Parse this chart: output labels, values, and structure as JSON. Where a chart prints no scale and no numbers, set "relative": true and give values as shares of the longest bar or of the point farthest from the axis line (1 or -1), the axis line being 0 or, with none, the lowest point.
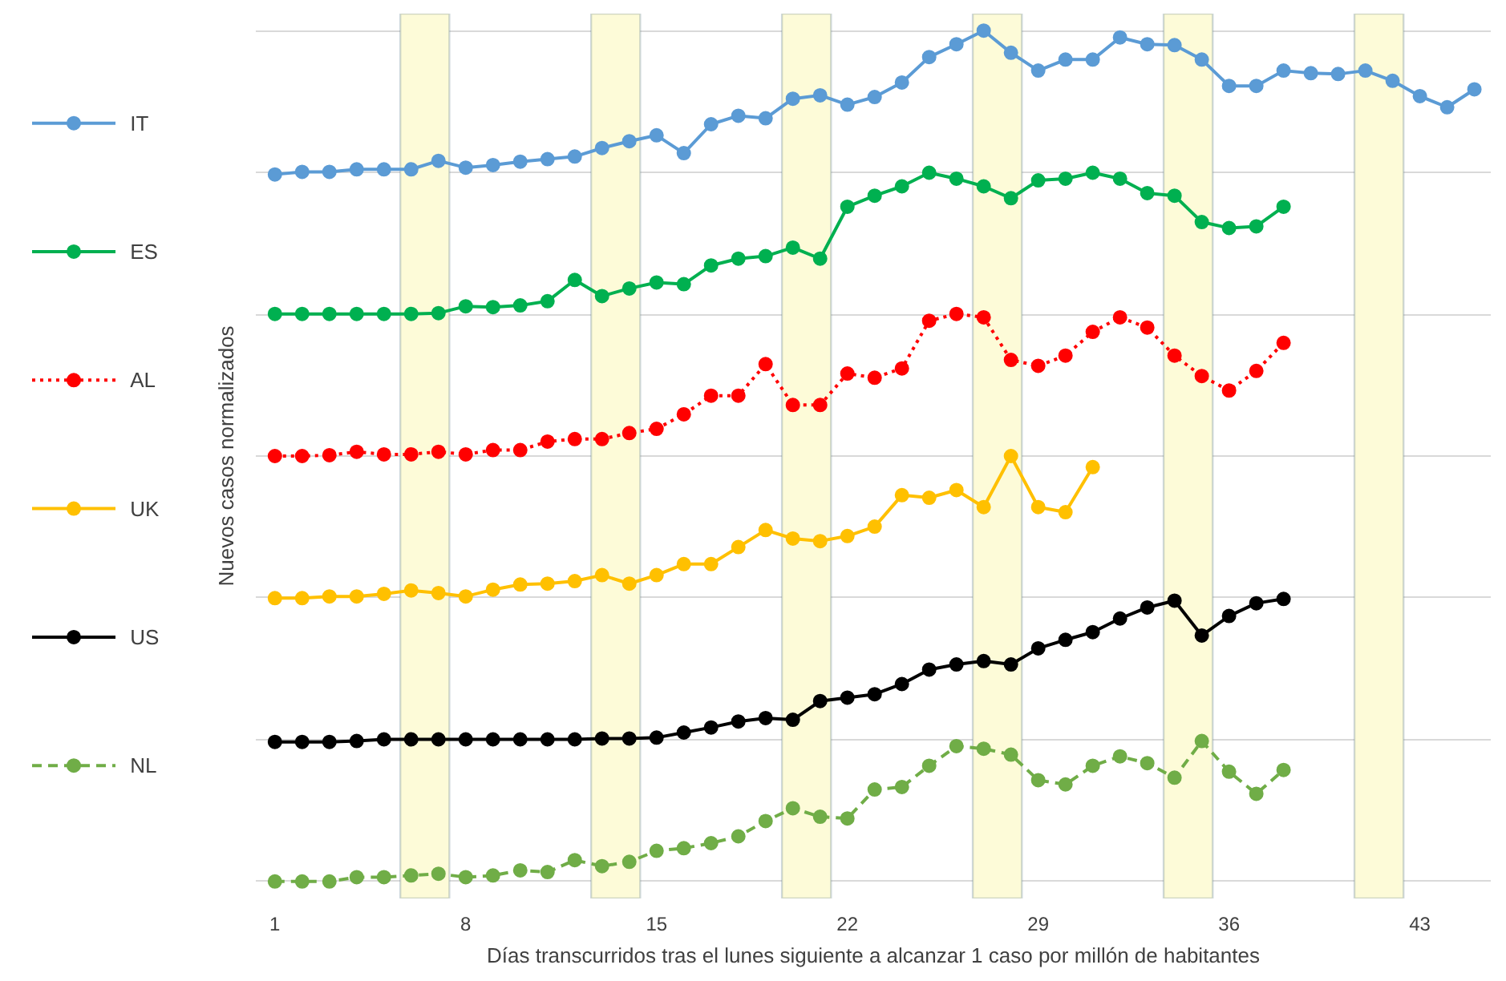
{
  "chart_data": {
    "type": "line",
    "relative": true,
    "xlabel": "Días transcurridos tras el lunes siguiente a alcanzar 1 caso por millón de habitantes",
    "ylabel": "Nuevos casos normalizados",
    "xlim": [
      0.3,
      45.6
    ],
    "xticks": [
      1,
      8,
      15,
      22,
      29,
      36,
      43
    ],
    "grid": "y",
    "legend": "left",
    "marker": "circle",
    "bands": [
      {
        "axis": "x",
        "from": 5.6,
        "to": 7.4,
        "color": "#fdfbd8"
      },
      {
        "axis": "x",
        "from": 12.6,
        "to": 14.4,
        "color": "#fdfbd8"
      },
      {
        "axis": "x",
        "from": 19.6,
        "to": 21.4,
        "color": "#fdfbd8"
      },
      {
        "axis": "x",
        "from": 26.6,
        "to": 28.4,
        "color": "#fdfbd8"
      },
      {
        "axis": "x",
        "from": 33.6,
        "to": 35.4,
        "color": "#fdfbd8"
      },
      {
        "axis": "x",
        "from": 40.6,
        "to": 42.4,
        "color": "#fdfbd8"
      }
    ],
    "series": [
      {
        "name": "IT",
        "color": "#5b9bd5",
        "line_style": "solid",
        "x": [
          1,
          2,
          3,
          4,
          5,
          6,
          7,
          8,
          9,
          10,
          11,
          12,
          13,
          14,
          15,
          16,
          17,
          18,
          19,
          20,
          21,
          22,
          23,
          24,
          25,
          26,
          27,
          28,
          29,
          30,
          31,
          32,
          33,
          34,
          35,
          36,
          37,
          38,
          39,
          40,
          41,
          42,
          43,
          44,
          45
        ],
        "values": [
          0.831,
          0.834,
          0.834,
          0.837,
          0.837,
          0.837,
          0.847,
          0.839,
          0.842,
          0.846,
          0.849,
          0.852,
          0.862,
          0.87,
          0.877,
          0.856,
          0.89,
          0.9,
          0.897,
          0.92,
          0.924,
          0.913,
          0.922,
          0.939,
          0.969,
          0.984,
          1.0,
          0.974,
          0.953,
          0.966,
          0.966,
          0.992,
          0.984,
          0.983,
          0.966,
          0.935,
          0.935,
          0.953,
          0.95,
          0.949,
          0.953,
          0.941,
          0.923,
          0.91,
          0.931
        ]
      },
      {
        "name": "ES",
        "color": "#00b050",
        "line_style": "solid",
        "x": [
          1,
          2,
          3,
          4,
          5,
          6,
          7,
          8,
          9,
          10,
          11,
          12,
          13,
          14,
          15,
          16,
          17,
          18,
          19,
          20,
          21,
          22,
          23,
          24,
          25,
          26,
          27,
          28,
          29,
          30,
          31,
          32,
          33,
          34,
          35,
          36,
          37,
          38
        ],
        "values": [
          0.667,
          0.667,
          0.667,
          0.667,
          0.667,
          0.667,
          0.668,
          0.676,
          0.675,
          0.677,
          0.682,
          0.707,
          0.688,
          0.697,
          0.704,
          0.702,
          0.724,
          0.732,
          0.735,
          0.745,
          0.732,
          0.793,
          0.806,
          0.817,
          0.833,
          0.826,
          0.817,
          0.803,
          0.824,
          0.826,
          0.833,
          0.826,
          0.809,
          0.806,
          0.775,
          0.768,
          0.77,
          0.793
        ]
      },
      {
        "name": "AL",
        "color": "#ff0000",
        "line_style": "dotted",
        "x": [
          1,
          2,
          3,
          4,
          5,
          6,
          7,
          8,
          9,
          10,
          11,
          12,
          13,
          14,
          15,
          16,
          17,
          18,
          19,
          20,
          21,
          22,
          23,
          24,
          25,
          26,
          27,
          28,
          29,
          30,
          31,
          32,
          33,
          34,
          35,
          36,
          37,
          38
        ],
        "values": [
          0.5,
          0.5,
          0.501,
          0.505,
          0.502,
          0.502,
          0.505,
          0.502,
          0.507,
          0.507,
          0.517,
          0.52,
          0.52,
          0.527,
          0.532,
          0.549,
          0.571,
          0.571,
          0.608,
          0.56,
          0.56,
          0.597,
          0.592,
          0.603,
          0.659,
          0.667,
          0.663,
          0.613,
          0.606,
          0.618,
          0.646,
          0.663,
          0.651,
          0.618,
          0.594,
          0.577,
          0.6,
          0.633
        ]
      },
      {
        "name": "UK",
        "color": "#ffc000",
        "line_style": "solid",
        "x": [
          1,
          2,
          3,
          4,
          5,
          6,
          7,
          8,
          9,
          10,
          11,
          12,
          13,
          14,
          15,
          16,
          17,
          18,
          19,
          20,
          21,
          22,
          23,
          24,
          25,
          26,
          27,
          28,
          29,
          30,
          31
        ],
        "values": [
          0.333,
          0.333,
          0.335,
          0.335,
          0.338,
          0.342,
          0.339,
          0.335,
          0.343,
          0.349,
          0.35,
          0.353,
          0.36,
          0.35,
          0.36,
          0.373,
          0.373,
          0.393,
          0.413,
          0.403,
          0.4,
          0.406,
          0.417,
          0.454,
          0.451,
          0.46,
          0.44,
          0.5,
          0.44,
          0.434,
          0.487
        ]
      },
      {
        "name": "US",
        "color": "#000000",
        "line_style": "solid",
        "x": [
          1,
          2,
          3,
          4,
          5,
          6,
          7,
          8,
          9,
          10,
          11,
          12,
          13,
          14,
          15,
          16,
          17,
          18,
          19,
          20,
          21,
          22,
          23,
          24,
          25,
          26,
          27,
          28,
          29,
          30,
          31,
          32,
          33,
          34,
          35,
          36,
          37,
          38
        ],
        "values": [
          0.164,
          0.164,
          0.164,
          0.165,
          0.167,
          0.167,
          0.167,
          0.167,
          0.167,
          0.167,
          0.167,
          0.167,
          0.168,
          0.168,
          0.169,
          0.175,
          0.181,
          0.188,
          0.192,
          0.19,
          0.212,
          0.216,
          0.22,
          0.232,
          0.249,
          0.255,
          0.259,
          0.255,
          0.274,
          0.284,
          0.293,
          0.309,
          0.322,
          0.33,
          0.289,
          0.312,
          0.327,
          0.332
        ]
      },
      {
        "name": "NL",
        "color": "#70ad47",
        "line_style": "dashed",
        "x": [
          1,
          2,
          3,
          4,
          5,
          6,
          7,
          8,
          9,
          10,
          11,
          12,
          13,
          14,
          15,
          16,
          17,
          18,
          19,
          20,
          21,
          22,
          23,
          24,
          25,
          26,
          27,
          28,
          29,
          30,
          31,
          32,
          33,
          34,
          35,
          36,
          37,
          38
        ],
        "values": [
          0.0,
          0.0,
          0.0,
          0.005,
          0.005,
          0.007,
          0.009,
          0.005,
          0.007,
          0.013,
          0.011,
          0.025,
          0.018,
          0.023,
          0.036,
          0.039,
          0.045,
          0.053,
          0.071,
          0.086,
          0.076,
          0.074,
          0.108,
          0.111,
          0.136,
          0.159,
          0.156,
          0.149,
          0.119,
          0.114,
          0.136,
          0.147,
          0.139,
          0.122,
          0.165,
          0.129,
          0.103,
          0.131
        ]
      }
    ]
  }
}
